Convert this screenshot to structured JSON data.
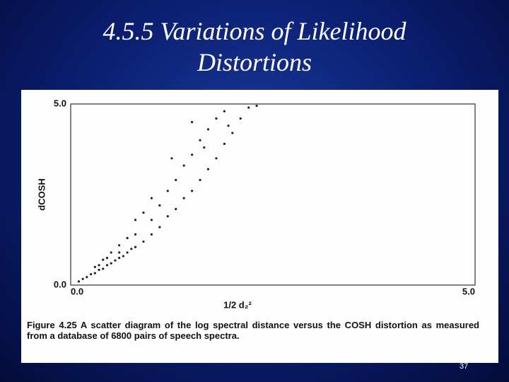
{
  "chart_data": {
    "type": "scatter",
    "title": "4.5.5 Variations of Likelihood Distortions",
    "xlabel": "1/2 d₂²",
    "ylabel": "dCOSH",
    "caption": "Figure 4.25 A scatter diagram of the log spectral distance versus the COSH distortion as measured from a database of 6800 pairs of speech spectra.",
    "page_number": "37",
    "color": "#222222",
    "xlim": [
      0,
      5
    ],
    "ylim": [
      0,
      5
    ],
    "xticks": [
      {
        "value": 0,
        "label": "0.0"
      },
      {
        "value": 5,
        "label": "5.0"
      }
    ],
    "yticks": [
      {
        "value": 0,
        "label": "0.0"
      },
      {
        "value": 5,
        "label": "5.0"
      }
    ],
    "x": [
      0.1,
      0.15,
      0.2,
      0.25,
      0.3,
      0.35,
      0.4,
      0.45,
      0.5,
      0.55,
      0.6,
      0.65,
      0.7,
      0.75,
      0.8,
      0.3,
      0.4,
      0.5,
      0.6,
      0.7,
      0.8,
      0.9,
      1.0,
      1.0,
      1.1,
      1.1,
      1.2,
      1.2,
      1.3,
      1.3,
      1.4,
      1.4,
      1.5,
      1.5,
      1.6,
      1.6,
      1.7,
      1.7,
      1.8,
      1.8,
      1.9,
      1.9,
      2.0,
      2.1,
      2.2,
      0.9,
      1.0,
      0.8,
      1.25,
      1.5,
      1.65,
      1.95,
      0.6,
      0.45,
      0.35,
      2.3
    ],
    "values": [
      0.1,
      0.17,
      0.22,
      0.3,
      0.33,
      0.42,
      0.45,
      0.55,
      0.6,
      0.68,
      0.75,
      0.8,
      0.9,
      1.0,
      1.05,
      0.5,
      0.7,
      0.9,
      1.1,
      1.3,
      1.4,
      1.2,
      1.4,
      1.8,
      1.6,
      2.2,
      1.9,
      2.6,
      2.1,
      2.9,
      2.4,
      3.3,
      2.6,
      3.6,
      2.9,
      4.0,
      3.2,
      4.3,
      3.5,
      4.6,
      3.9,
      4.8,
      4.2,
      4.6,
      4.9,
      2.0,
      2.4,
      1.8,
      3.5,
      4.5,
      3.8,
      4.4,
      0.9,
      0.75,
      0.55,
      4.95
    ]
  }
}
